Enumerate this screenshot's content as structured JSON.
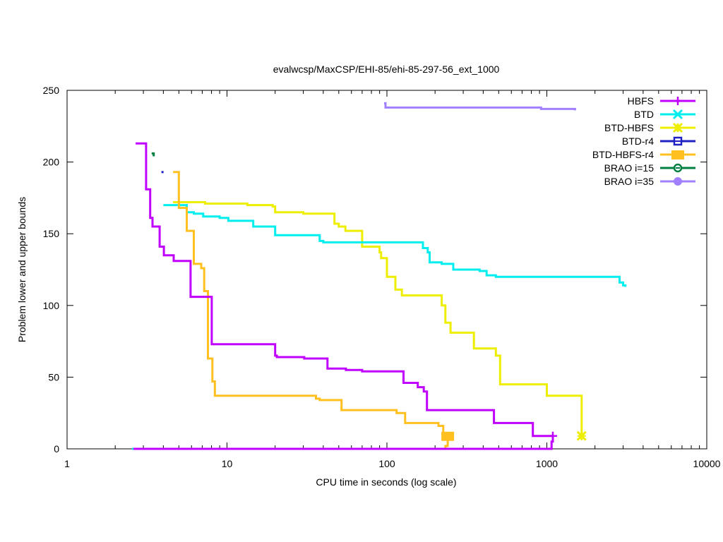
{
  "chart_data": {
    "type": "line",
    "title": "evalwcsp/MaxCSP/EHI-85/ehi-85-297-56_ext_1000",
    "xlabel": "CPU time in seconds (log scale)",
    "ylabel": "Problem lower and upper bounds",
    "xscale": "log",
    "xlim": [
      1,
      10000
    ],
    "ylim": [
      0,
      250
    ],
    "xticks": [
      1,
      10,
      100,
      1000,
      10000
    ],
    "xtick_labels": [
      "1",
      "10",
      "100",
      "1000",
      "10000"
    ],
    "yticks": [
      0,
      50,
      100,
      150,
      200,
      250
    ],
    "ytick_labels": [
      "0",
      "50",
      "100",
      "150",
      "200",
      "250"
    ],
    "grid": false,
    "legend_position": "top-right",
    "series": [
      {
        "name": "HBFS",
        "color": "#c000ff",
        "marker": "plus",
        "upper": [
          [
            2.68,
            213
          ],
          [
            3.12,
            181
          ],
          [
            3.31,
            161
          ],
          [
            3.42,
            155
          ],
          [
            3.79,
            141
          ],
          [
            4.03,
            135
          ],
          [
            4.64,
            131
          ],
          [
            5.92,
            106
          ],
          [
            8.03,
            73
          ],
          [
            20,
            65
          ],
          [
            20.5,
            64
          ],
          [
            30.4,
            63
          ],
          [
            42.5,
            56
          ],
          [
            55.4,
            55
          ],
          [
            70,
            54
          ],
          [
            127,
            46
          ],
          [
            156,
            43
          ],
          [
            170,
            40
          ],
          [
            178,
            27
          ],
          [
            467,
            18
          ],
          [
            818,
            9
          ],
          [
            1090,
            9
          ]
        ],
        "lower": [
          [
            2.6,
            0
          ],
          [
            235,
            0
          ],
          [
            1050,
            0
          ],
          [
            1070,
            5
          ],
          [
            1090,
            9
          ]
        ],
        "final_marker": [
          1090,
          9
        ]
      },
      {
        "name": "BTD",
        "color": "#00eeee",
        "marker": "x",
        "upper": [
          [
            4.0,
            170
          ],
          [
            5.6,
            165
          ],
          [
            6.2,
            164
          ],
          [
            7.1,
            162
          ],
          [
            9.0,
            161
          ],
          [
            10.2,
            159
          ],
          [
            14.6,
            155
          ],
          [
            20,
            149
          ],
          [
            38,
            145
          ],
          [
            40,
            144
          ],
          [
            168,
            140
          ],
          [
            180,
            137
          ],
          [
            185,
            130
          ],
          [
            220,
            129
          ],
          [
            260,
            125
          ],
          [
            380,
            124
          ],
          [
            420,
            121
          ],
          [
            480,
            120
          ],
          [
            2850,
            116
          ],
          [
            3000,
            114
          ],
          [
            3100,
            113
          ]
        ],
        "lower": [
          [
            2.55,
            0
          ],
          [
            2.65,
            0
          ]
        ]
      },
      {
        "name": "BTD-HBFS",
        "color": "#eeee00",
        "marker": "star",
        "upper": [
          [
            4.6,
            172
          ],
          [
            7.3,
            171
          ],
          [
            13.4,
            170
          ],
          [
            19.3,
            169
          ],
          [
            20,
            165
          ],
          [
            30,
            164
          ],
          [
            47,
            157
          ],
          [
            50,
            155
          ],
          [
            55,
            152
          ],
          [
            70,
            141
          ],
          [
            90,
            137
          ],
          [
            92,
            133
          ],
          [
            100,
            120
          ],
          [
            113,
            111
          ],
          [
            124,
            107
          ],
          [
            220,
            100
          ],
          [
            232,
            88
          ],
          [
            250,
            81
          ],
          [
            350,
            70
          ],
          [
            480,
            65
          ],
          [
            510,
            45
          ],
          [
            1000,
            37
          ],
          [
            1650,
            9
          ]
        ],
        "lower": [],
        "final_marker": [
          1650,
          9
        ]
      },
      {
        "name": "BTD-r4",
        "color": "#2020c0",
        "marker": "square-open",
        "upper": [
          [
            3.95,
            193
          ]
        ],
        "lower": []
      },
      {
        "name": "BTD-HBFS-r4",
        "color": "#ffc020",
        "marker": "square-filled",
        "upper": [
          [
            4.6,
            193
          ],
          [
            5.0,
            168
          ],
          [
            5.6,
            152
          ],
          [
            6.2,
            129
          ],
          [
            6.9,
            126
          ],
          [
            7.2,
            110
          ],
          [
            7.6,
            63
          ],
          [
            8.1,
            47
          ],
          [
            8.4,
            37
          ],
          [
            36,
            35
          ],
          [
            38,
            34
          ],
          [
            52,
            27
          ],
          [
            115,
            25
          ],
          [
            130,
            18
          ],
          [
            210,
            16
          ],
          [
            225,
            9
          ],
          [
            240,
            9
          ]
        ],
        "lower": [
          [
            2.75,
            0
          ],
          [
            225,
            0
          ],
          [
            232,
            2
          ],
          [
            240,
            9
          ]
        ],
        "final_marker": [
          240,
          9
        ]
      },
      {
        "name": "BRAO i=15",
        "color": "#008040",
        "marker": "circle-open",
        "upper": [
          [
            3.38,
            206
          ],
          [
            3.48,
            204
          ]
        ],
        "lower": []
      },
      {
        "name": "BRAO i=35",
        "color": "#a080ff",
        "marker": "circle-filled",
        "upper": [
          [
            96,
            241
          ],
          [
            98,
            238
          ],
          [
            900,
            238
          ],
          [
            920,
            237
          ],
          [
            1500,
            236
          ]
        ],
        "lower": []
      }
    ]
  }
}
